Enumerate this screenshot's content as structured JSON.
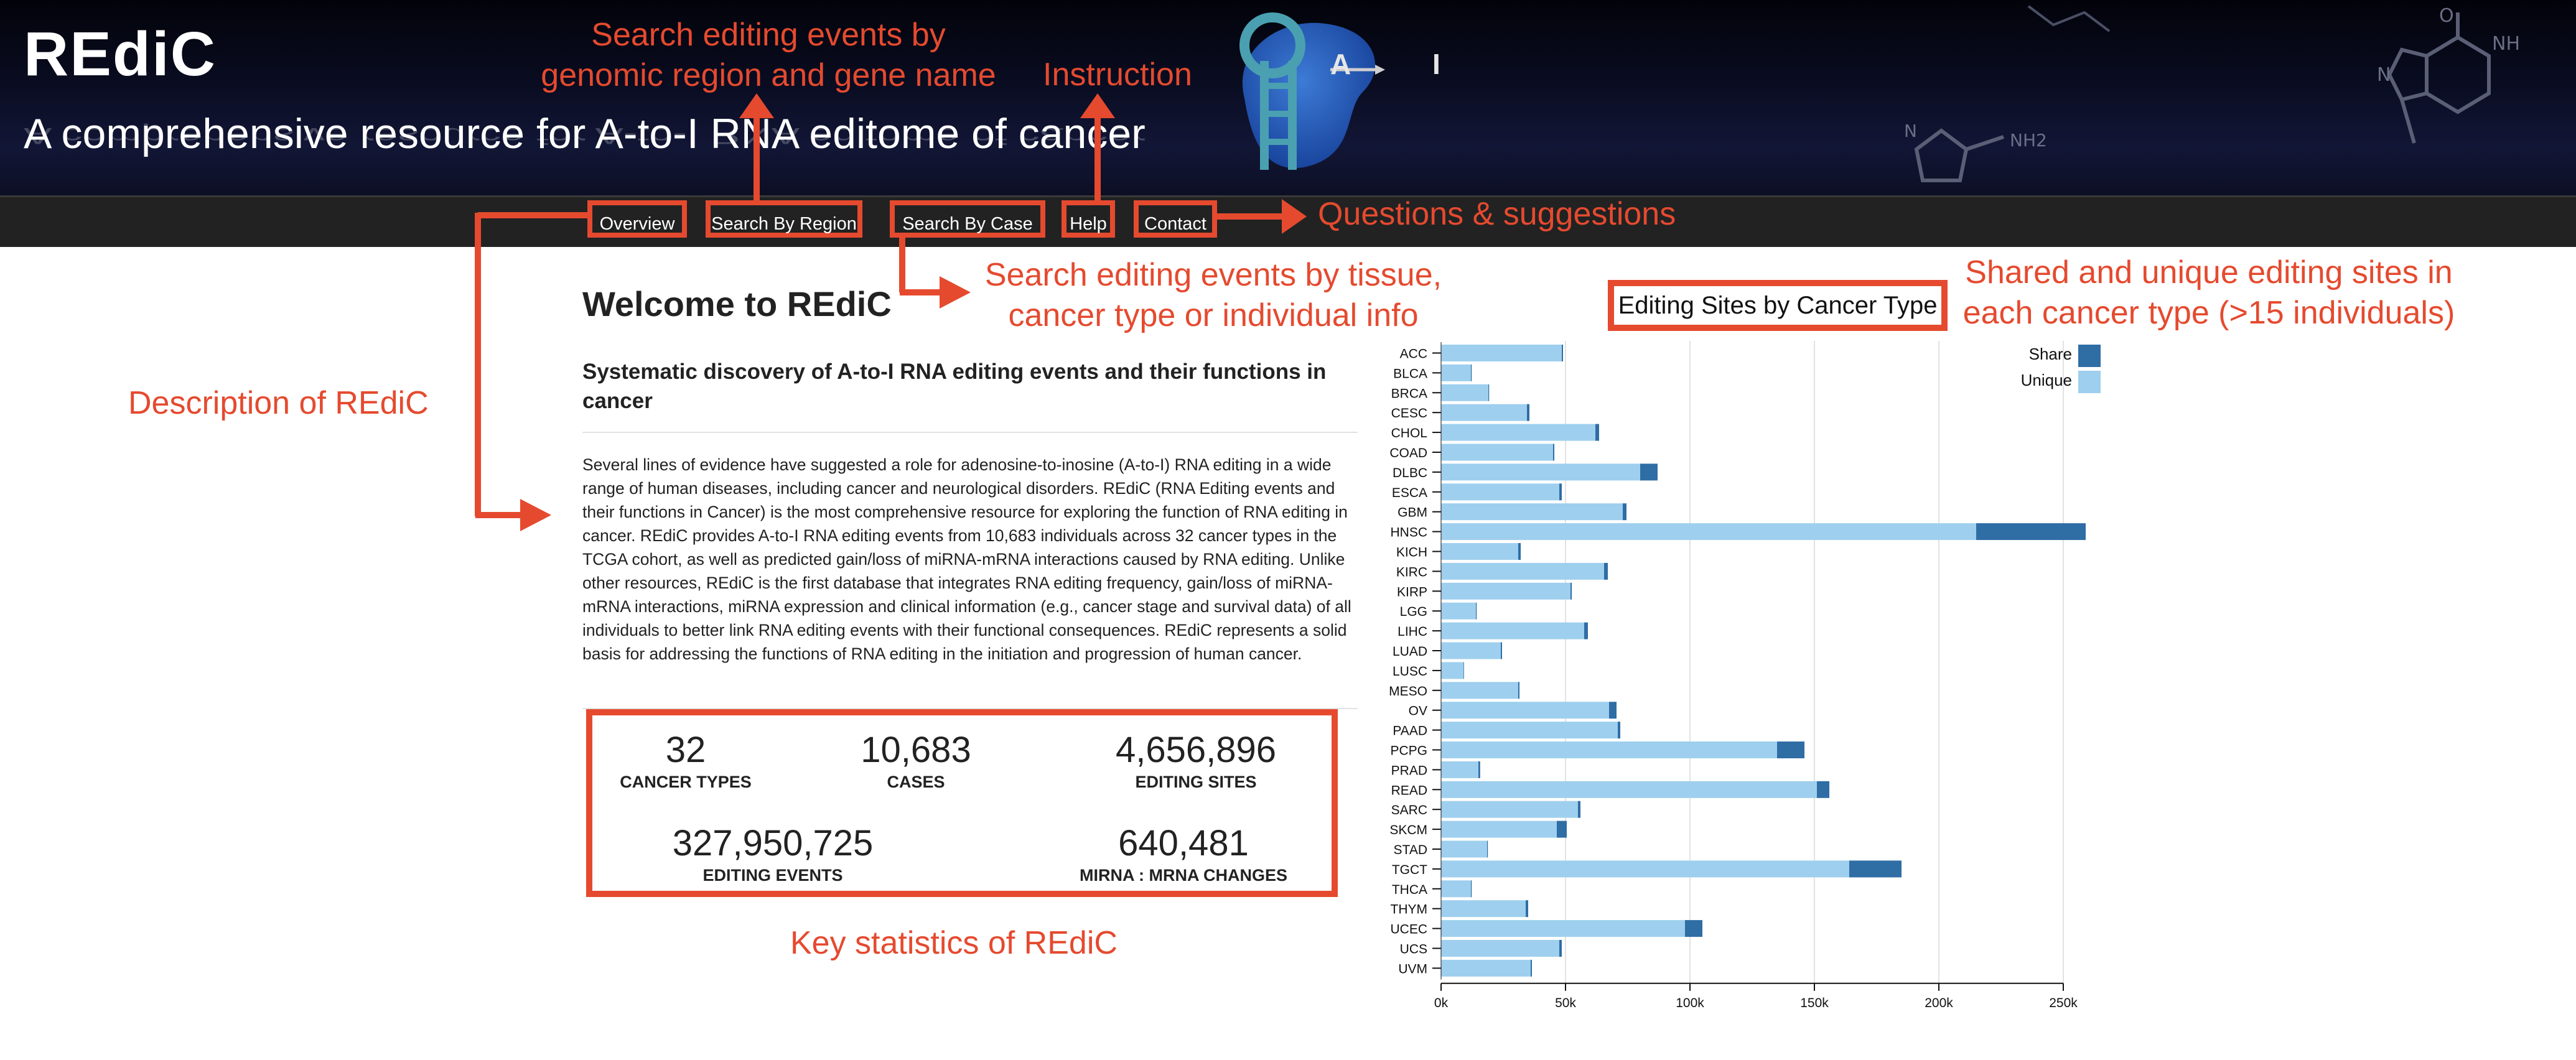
{
  "header": {
    "logo": "REdiC",
    "tagline": "A comprehensive resource for A-to-I RNA editome of cancer",
    "glyph_a": "A",
    "glyph_i": "I"
  },
  "nav": [
    {
      "label": "Overview"
    },
    {
      "label": "Search By Region"
    },
    {
      "label": "Search By Case"
    },
    {
      "label": "Help"
    },
    {
      "label": "Contact"
    }
  ],
  "annotations": {
    "search_region_1": "Search editing events by",
    "search_region_2": "genomic region and gene name",
    "instruction": "Instruction",
    "contact": "Questions & suggestions",
    "search_case_1": "Search editing events by tissue,",
    "search_case_2": "cancer type or individual info",
    "description": "Description of REdiC",
    "shared_1": "Shared and unique editing sites  in",
    "shared_2": "each cancer type (>15 individuals)",
    "key_stats": "Key statistics of REdiC"
  },
  "main": {
    "title": "Welcome to REdiC",
    "subtitle": "Systematic discovery of A-to-I RNA editing events and their functions in cancer",
    "description": "Several lines of evidence have suggested a role for adenosine-to-inosine (A-to-I) RNA editing in a wide range of human diseases, including cancer and neurological disorders. REdiC (RNA Editing events and their functions in Cancer) is the most comprehensive resource for exploring the function of RNA editing in cancer. REdiC provides A-to-I RNA editing events from 10,683 individuals across 32 cancer types in the TCGA cohort, as well as predicted gain/loss of miRNA-mRNA interactions caused by RNA editing. Unlike other resources, REdiC is the first database that integrates RNA editing frequency, gain/loss of miRNA-mRNA interactions, miRNA expression and clinical information (e.g., cancer stage and survival data) of all individuals to better link RNA editing events with their functional consequences. REdiC represents a solid basis for addressing the functions of RNA editing in the initiation and progression of human cancer."
  },
  "stats": {
    "cancer_types": {
      "value": "32",
      "label": "CANCER TYPES"
    },
    "cases": {
      "value": "10,683",
      "label": "CASES"
    },
    "editing_sites": {
      "value": "4,656,896",
      "label": "EDITING SITES"
    },
    "editing_events": {
      "value": "327,950,725",
      "label": "EDITING EVENTS"
    },
    "mirna_changes": {
      "value": "640,481",
      "label": "MIRNA : MRNA CHANGES"
    }
  },
  "chart_data": {
    "type": "bar",
    "orientation": "horizontal",
    "stacked": true,
    "title": "Editing Sites by Cancer Type",
    "categories": [
      "ACC",
      "BLCA",
      "BRCA",
      "CESC",
      "CHOL",
      "COAD",
      "DLBC",
      "ESCA",
      "GBM",
      "HNSC",
      "KICH",
      "KIRC",
      "KIRP",
      "LGG",
      "LIHC",
      "LUAD",
      "LUSC",
      "MESO",
      "OV",
      "PAAD",
      "PCPG",
      "PRAD",
      "READ",
      "SARC",
      "SKCM",
      "STAD",
      "TGCT",
      "THCA",
      "THYM",
      "UCEC",
      "UCS",
      "UVM"
    ],
    "series": [
      {
        "name": "Unique",
        "color": "#9ecfee",
        "values": [
          48500,
          12000,
          19000,
          34500,
          62000,
          45000,
          80000,
          47500,
          73000,
          215000,
          31000,
          65500,
          52000,
          14000,
          57500,
          24000,
          9000,
          31000,
          67500,
          71000,
          135000,
          15000,
          151000,
          55000,
          46500,
          18500,
          164000,
          12000,
          34000,
          98000,
          47500,
          36000
        ]
      },
      {
        "name": "Share",
        "color": "#2f6da5",
        "values": [
          500,
          300,
          300,
          1000,
          1500,
          500,
          7000,
          1000,
          1500,
          44000,
          1000,
          1500,
          500,
          300,
          1500,
          500,
          200,
          500,
          3000,
          1000,
          11000,
          700,
          5000,
          1000,
          4000,
          300,
          21000,
          300,
          1000,
          7000,
          1000,
          500
        ]
      }
    ],
    "xlim": [
      0,
      250000
    ],
    "x_ticks": [
      "0k",
      "50k",
      "100k",
      "150k",
      "200k",
      "250k"
    ],
    "legend": [
      "Share",
      "Unique"
    ],
    "legend_position": "top-right",
    "grid": true
  }
}
